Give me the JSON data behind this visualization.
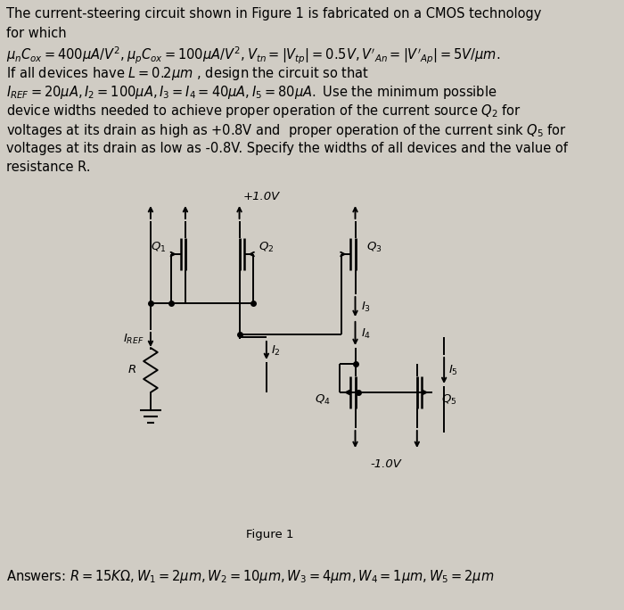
{
  "bg_color": "#d0ccc4",
  "text_color": "#000000",
  "line_color": "#000000",
  "fig_title": "Figure 1",
  "vdd": "+1.0V",
  "vss": "-1.0V",
  "header1": "The current-steering circuit shown in Figure 1 is fabricated on a CMOS technology",
  "header2": "for which",
  "math_line": "$\\mu_n C_{ox} = 400\\mu A/V^2, \\mu_p C_{ox} = 100\\mu A/V^2, V_{tn} =|V_{tp}|= 0.5V, V'_{An} =|V'_{Ap}|= 5V/\\mu m.$",
  "line3": "If all devices have $L = 0.2\\mu m$ , design the circuit so that",
  "line4": "$I_{REF} = 20\\mu A, I_2 = 100\\mu A, I_3 = I_4 = 40\\mu A, I_5 = 80\\mu A.$ Use the minimum possible",
  "line5": "device widths needed to achieve proper operation of the current source $Q_2$ for",
  "line6": "voltages at its drain as high as +0.8V and  proper operation of the current sink $Q_5$ for",
  "line7": "voltages at its drain as low as -0.8V. Specify the widths of all devices and the value of",
  "line8": "resistance R.",
  "answer": "Answers: $R = 15K\\Omega, W_1 = 2\\mu m, W_2 = 10\\mu m, W_3 = 4\\mu m, W_4 = 1\\mu m, W_5 = 2\\mu m$"
}
